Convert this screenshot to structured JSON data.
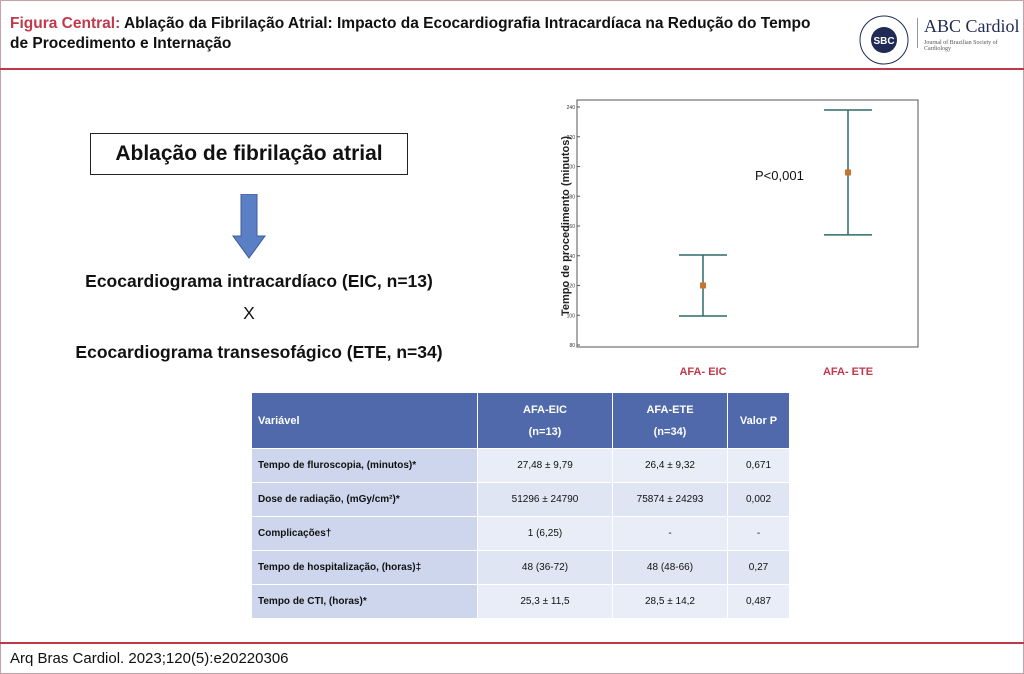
{
  "header": {
    "title_lead": "Figura Central:",
    "title": "Ablação da Fibrilação Atrial: Impacto da Ecocardiografia Intracardíaca na Redução do Tempo de Procedimento e Internação",
    "logo_left": "SBC",
    "logo_right": "ABC Cardiol",
    "logo_right_sub": "Journal of Brazilian Society of Cardiology"
  },
  "diagram": {
    "box": "Ablação de fibrilação atrial",
    "line1": "Ecocardiograma intracardíaco (EIC, n=13)",
    "vs": "X",
    "line2": "Ecocardiograma transesofágico (ETE, n=34)"
  },
  "chart_data": {
    "type": "errorbar",
    "y_label": "Tempo de procedimento (minutos)",
    "annotation": "P<0,001",
    "categories": [
      "AFA- EIC",
      "AFA- ETE"
    ],
    "values": [
      120,
      196
    ],
    "errors": [
      20.5,
      42
    ],
    "color": "#c8742c",
    "bar_color": "#2e6b6b",
    "ylim": [
      80,
      240
    ],
    "yticks": [
      80,
      100,
      120,
      140,
      160,
      180,
      200,
      220,
      240
    ]
  },
  "table": {
    "header": [
      "Variável",
      [
        "AFA-EIC",
        "(n=13)"
      ],
      [
        "AFA-ETE",
        "(n=34)"
      ],
      "Valor P"
    ],
    "rows": [
      [
        "Tempo de fluroscopia, (minutos)*",
        "27,48 ± 9,79",
        "26,4 ± 9,32",
        "0,671"
      ],
      [
        "Dose de radiação, (mGy/cm²)*",
        "51296 ± 24790",
        "75874 ± 24293",
        "0,002"
      ],
      [
        "Complicações†",
        "1 (6,25)",
        "-",
        "-"
      ],
      [
        "Tempo de hospitalização, (horas)‡",
        "48 (36-72)",
        "48 (48-66)",
        "0,27"
      ],
      [
        "Tempo de CTI, (horas)*",
        "25,3 ± 11,5",
        "28,5 ± 14,2",
        "0,487"
      ]
    ]
  },
  "footer": "Arq Bras Cardiol. 2023;120(5):e20220306"
}
